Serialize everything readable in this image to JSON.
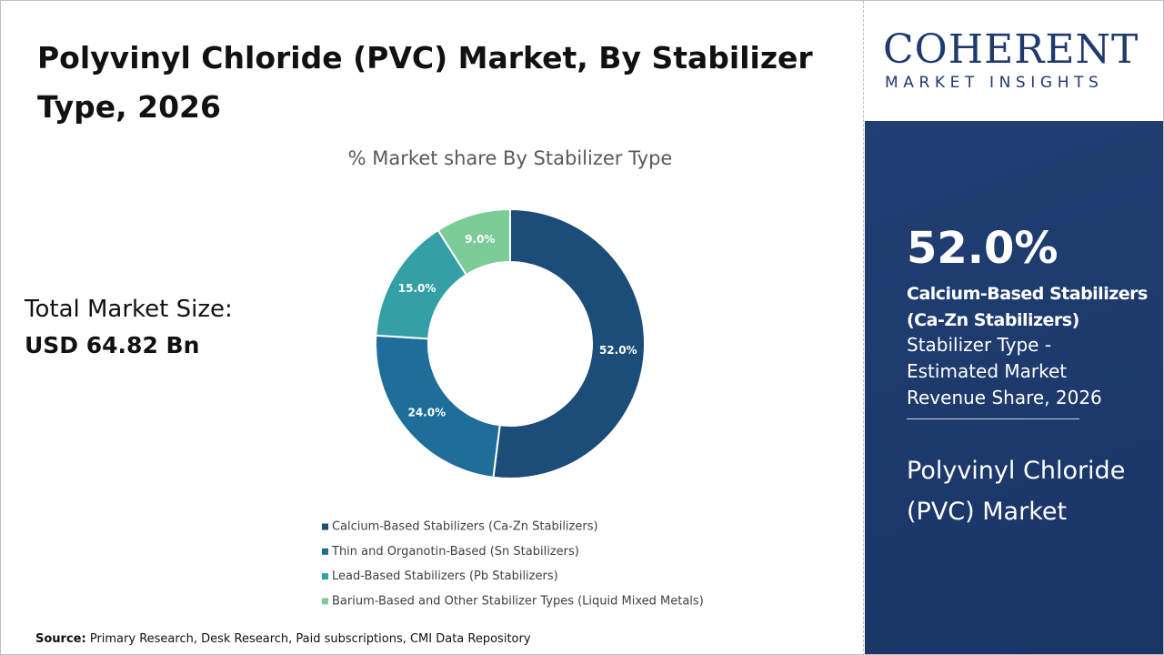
{
  "title": "Polyvinyl Chloride (PVC) Market, By Stabilizer Type, 2026",
  "total_market_size": {
    "label": "Total Market Size:",
    "value": "USD 64.82 Bn"
  },
  "source": {
    "label": "Source:",
    "text": "Primary Research, Desk Research, Paid subscriptions, CMI Data Repository"
  },
  "logo": {
    "name": "COHERENT",
    "tagline": "MARKET INSIGHTS"
  },
  "sidebar": {
    "highlight_value": "52.0%",
    "segment": "Calcium-Based Stabilizers (Ca-Zn Stabilizers)",
    "description": "Stabilizer Type - Estimated Market Revenue Share, 2026",
    "market": "Polyvinyl Chloride (PVC) Market"
  },
  "chart_data": {
    "type": "pie",
    "donut": true,
    "title": "% Market share By Stabilizer Type",
    "categories": [
      "Calcium-Based Stabilizers (Ca-Zn Stabilizers)",
      "Thin and Organotin-Based (Sn Stabilizers)",
      "Lead-Based Stabilizers (Pb Stabilizers)",
      "Barium-Based and Other Stabilizer Types (Liquid Mixed Metals)"
    ],
    "values": [
      52,
      24,
      15,
      9
    ],
    "value_labels": [
      "52.0%",
      "24.0%",
      "15.0%",
      "9.0%"
    ],
    "colors": [
      "#1b4d78",
      "#1f6e99",
      "#34a0a6",
      "#7bcc97"
    ]
  }
}
